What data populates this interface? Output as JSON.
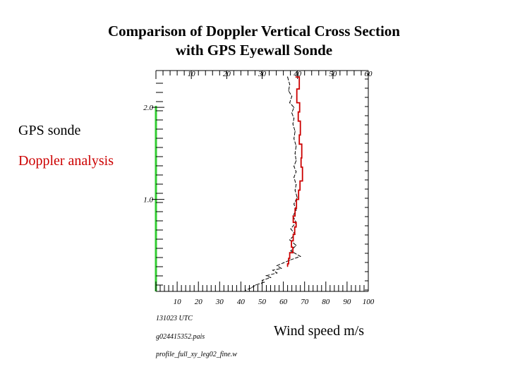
{
  "slide": {
    "title_line1": "Comparison of Doppler Vertical Cross Section",
    "title_line2": "with GPS Eyewall Sonde",
    "legend_gps": "GPS sonde",
    "legend_doppler": "Doppler analysis",
    "wind_label": "Wind speed m/s",
    "footnotes": [
      "131023 UTC",
      "g024415352.pais",
      "profile_full_xy_leg02_fine.w"
    ]
  },
  "chart_data": {
    "type": "line",
    "title": "",
    "xlabel": "Wind speed m/s",
    "ylabel": "",
    "top_axis": {
      "ticks": [
        10,
        20,
        30,
        40,
        50,
        60
      ],
      "range": [
        0,
        60
      ]
    },
    "bottom_axis": {
      "ticks": [
        10,
        20,
        30,
        40,
        50,
        60,
        70,
        80,
        90,
        100
      ],
      "range": [
        0,
        100
      ]
    },
    "left_axis": {
      "ticks": [
        1.0,
        2.0
      ],
      "tick_labels": [
        "1.0",
        "2.0"
      ],
      "range": [
        0,
        2.4
      ]
    },
    "grid": false,
    "legend_placement": "left",
    "colors": {
      "gps": "#000000",
      "doppler": "#cc0000",
      "height_bar": "#33cc33"
    },
    "series": [
      {
        "name": "GPS sonde",
        "axis": "bottom",
        "points": [
          [
            62,
            2.33
          ],
          [
            63,
            2.25
          ],
          [
            62.5,
            2.18
          ],
          [
            64,
            2.12
          ],
          [
            63,
            2.05
          ],
          [
            65,
            2.0
          ],
          [
            64,
            1.94
          ],
          [
            65,
            1.88
          ],
          [
            64.5,
            1.82
          ],
          [
            65.5,
            1.74
          ],
          [
            65,
            1.66
          ],
          [
            66,
            1.58
          ],
          [
            65.5,
            1.5
          ],
          [
            66,
            1.42
          ],
          [
            65,
            1.36
          ],
          [
            66,
            1.3
          ],
          [
            65,
            1.24
          ],
          [
            66,
            1.16
          ],
          [
            65.5,
            1.1
          ],
          [
            66.5,
            1.02
          ],
          [
            65,
            0.95
          ],
          [
            66,
            0.88
          ],
          [
            64.5,
            0.82
          ],
          [
            66,
            0.75
          ],
          [
            63.5,
            0.68
          ],
          [
            65.5,
            0.62
          ],
          [
            63,
            0.56
          ],
          [
            66,
            0.5
          ],
          [
            63.5,
            0.44
          ],
          [
            68,
            0.38
          ],
          [
            63,
            0.34
          ],
          [
            60,
            0.31
          ],
          [
            57,
            0.28
          ],
          [
            59,
            0.25
          ],
          [
            55,
            0.23
          ],
          [
            57,
            0.2
          ],
          [
            52,
            0.17
          ],
          [
            54,
            0.15
          ],
          [
            50,
            0.12
          ],
          [
            51,
            0.1
          ],
          [
            47,
            0.07
          ],
          [
            45,
            0.04
          ],
          [
            42,
            0.01
          ]
        ]
      },
      {
        "name": "Doppler analysis",
        "axis": "top",
        "points": [
          [
            39.5,
            2.33
          ],
          [
            40.5,
            2.2
          ],
          [
            39.8,
            2.05
          ],
          [
            40.6,
            1.95
          ],
          [
            40.2,
            1.85
          ],
          [
            40.8,
            1.7
          ],
          [
            40.5,
            1.6
          ],
          [
            41.2,
            1.45
          ],
          [
            41,
            1.35
          ],
          [
            41.4,
            1.2
          ],
          [
            40.7,
            1.1
          ],
          [
            40.3,
            1.0
          ],
          [
            39.7,
            0.9
          ],
          [
            39.3,
            0.82
          ],
          [
            38.8,
            0.75
          ],
          [
            39.6,
            0.7
          ],
          [
            39.2,
            0.62
          ],
          [
            38.8,
            0.55
          ],
          [
            38.3,
            0.48
          ],
          [
            38.7,
            0.42
          ],
          [
            37.8,
            0.36
          ],
          [
            37.5,
            0.3
          ],
          [
            37.2,
            0.27
          ]
        ]
      }
    ]
  }
}
